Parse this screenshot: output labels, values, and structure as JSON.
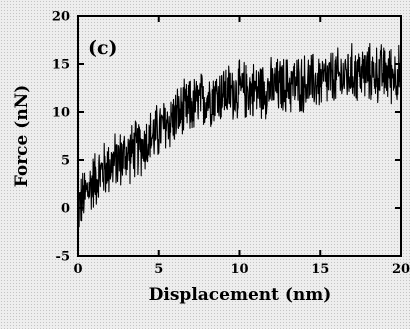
{
  "chart_data": {
    "type": "line",
    "panel_label": "(c)",
    "xlabel": "Displacement (nm)",
    "ylabel": "Force (nN)",
    "xlim": [
      0,
      20
    ],
    "ylim": [
      -5,
      20
    ],
    "x_ticks": [
      "0",
      "5",
      "10",
      "15",
      "20"
    ],
    "y_ticks": [
      "-5",
      "0",
      "5",
      "10",
      "15",
      "20"
    ],
    "grid": false,
    "trend": {
      "x": [
        0,
        1,
        2,
        3,
        4,
        5,
        6,
        7,
        8,
        9,
        10,
        11,
        12,
        13,
        14,
        15,
        16,
        17,
        18,
        19,
        20
      ],
      "y": [
        0,
        3,
        4.5,
        5.5,
        6.5,
        8,
        9.5,
        10.5,
        11.5,
        12,
        12.2,
        12.3,
        12.5,
        12.8,
        13,
        13.2,
        13.5,
        14,
        14,
        14,
        14
      ]
    },
    "noise_amplitude": 3.5,
    "line_color": "#000000"
  }
}
